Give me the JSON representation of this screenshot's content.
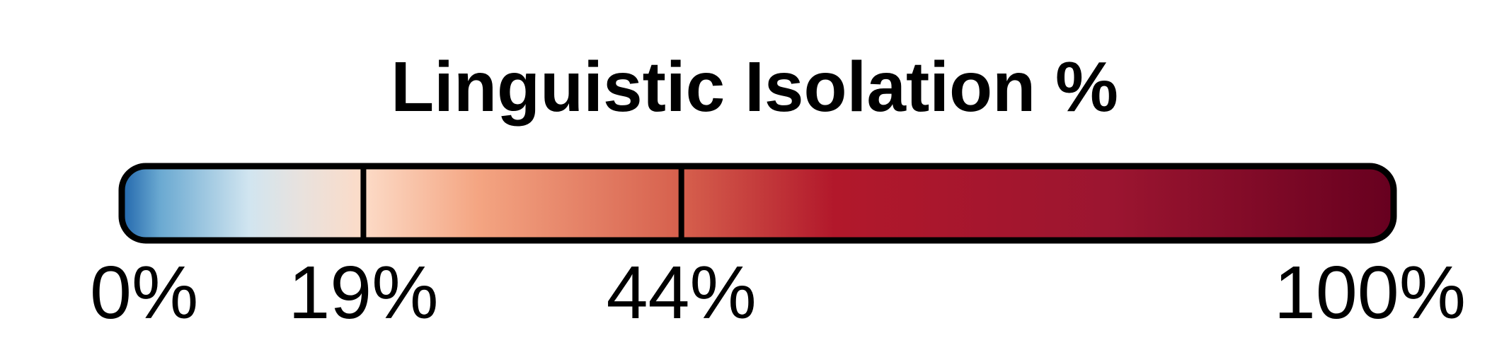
{
  "chart_data": {
    "type": "colorbar",
    "title": "Linguistic Isolation %",
    "range": [
      0,
      100
    ],
    "unit": "%",
    "breaks": [
      {
        "value": 0,
        "label": "0%"
      },
      {
        "value": 19,
        "label": "19%"
      },
      {
        "value": 44,
        "label": "44%"
      },
      {
        "value": 100,
        "label": "100%"
      }
    ],
    "divider_values": [
      19,
      44
    ],
    "color_stops": [
      {
        "value": 0,
        "color": "#2166ac"
      },
      {
        "value": 3,
        "color": "#6aa9d1"
      },
      {
        "value": 10,
        "color": "#d1e5f0"
      },
      {
        "value": 14,
        "color": "#e8e2de"
      },
      {
        "value": 19,
        "color": "#fcdbc7"
      },
      {
        "value": 28,
        "color": "#f4a582"
      },
      {
        "value": 44,
        "color": "#d6604d"
      },
      {
        "value": 56,
        "color": "#b2182b"
      },
      {
        "value": 78,
        "color": "#9b1530"
      },
      {
        "value": 100,
        "color": "#67001f"
      }
    ],
    "border_color": "#000000"
  }
}
